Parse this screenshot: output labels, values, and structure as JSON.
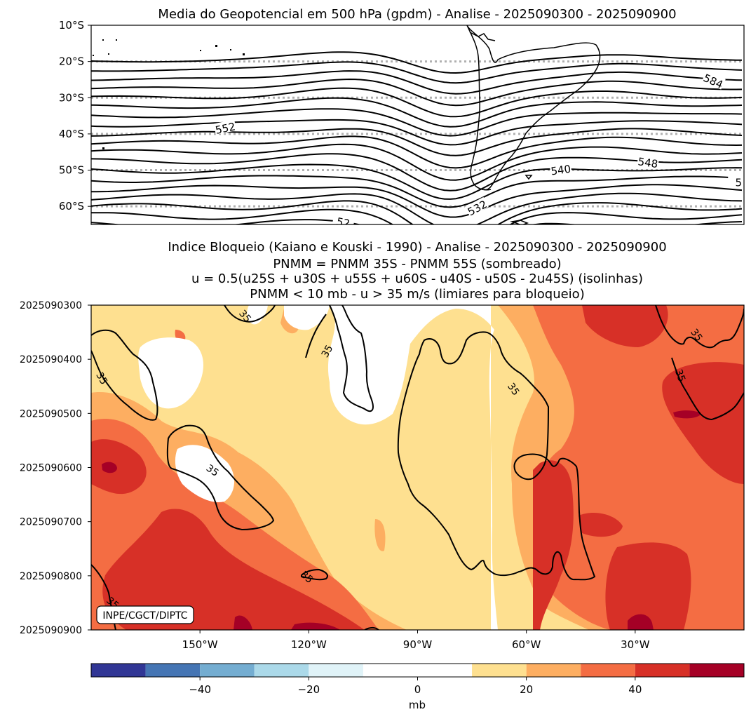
{
  "chart_data": [
    {
      "type": "contour",
      "title": "Media do Geopotencial em 500 hPa (gpdm) - Analise - 2025090300 - 2025090900",
      "y_ticks": [
        {
          "value": -10,
          "label": "10°S"
        },
        {
          "value": -20,
          "label": "20°S"
        },
        {
          "value": -30,
          "label": "30°S"
        },
        {
          "value": -40,
          "label": "40°S"
        },
        {
          "value": -50,
          "label": "50°S"
        },
        {
          "value": -60,
          "label": "60°S"
        }
      ],
      "ylim": [
        -65,
        -10
      ],
      "xlim": [
        -180,
        0
      ],
      "gridlines_lat": [
        -20,
        -30,
        -40,
        -50,
        -60
      ],
      "contour_labels": [
        {
          "text": "552",
          "lon": -143,
          "lat": -38.5,
          "rot": -12
        },
        {
          "text": "584",
          "lon": -8.5,
          "lat": -25.5,
          "rot": 24
        },
        {
          "text": "548",
          "lon": -26.5,
          "lat": -48,
          "rot": 8
        },
        {
          "text": "540",
          "lon": -50.5,
          "lat": -50,
          "rot": -8
        },
        {
          "text": "532",
          "lon": -73.5,
          "lat": -60.5,
          "rot": -28
        },
        {
          "text": "52",
          "lon": -110.5,
          "lat": -64.5,
          "rot": 12
        },
        {
          "text": "5",
          "lon": -1.5,
          "lat": -53.5,
          "rot": 0
        }
      ]
    },
    {
      "type": "filled-contour",
      "title_lines": [
        "Indice Bloqueio (Kaiano e Kouski - 1990) - Analise - 2025090300 - 2025090900",
        "PNMM = PNMM 35S - PNMM 55S (sombreado)",
        "u = 0.5(u25S + u30S + u55S + u60S - u40S - u50S - 2u45S) (isolinhas)",
        "PNMM < 10 mb - u > 35 m/s (limiares para bloqueio)"
      ],
      "y_ticks": [
        "2025090300",
        "2025090400",
        "2025090500",
        "2025090600",
        "2025090700",
        "2025090800",
        "2025090900"
      ],
      "x_ticks": [
        {
          "value": -150,
          "label": "150°W"
        },
        {
          "value": -120,
          "label": "120°W"
        },
        {
          "value": -90,
          "label": "90°W"
        },
        {
          "value": -60,
          "label": "60°W"
        },
        {
          "value": -30,
          "label": "30°W"
        }
      ],
      "xlim": [
        -180,
        0
      ],
      "contour_labels": [
        {
          "text": "35",
          "lon": -137.5,
          "day": 0.2,
          "rot": 50
        },
        {
          "text": "35",
          "lon": -115,
          "day": 0.85,
          "rot": -60
        },
        {
          "text": "35",
          "lon": -177,
          "day": 1.35,
          "rot": 60
        },
        {
          "text": "35",
          "lon": -63.5,
          "day": 1.55,
          "rot": 55
        },
        {
          "text": "35",
          "lon": -13,
          "day": 0.55,
          "rot": 55
        },
        {
          "text": "35",
          "lon": -17.5,
          "day": 1.3,
          "rot": 70
        },
        {
          "text": "35",
          "lon": -146.5,
          "day": 3.05,
          "rot": 35
        },
        {
          "text": "35",
          "lon": -120.5,
          "day": 5.02,
          "rot": 40
        },
        {
          "text": "35",
          "lon": -174,
          "day": 5.5,
          "rot": 40
        }
      ],
      "attribution": "INPE/CGCT/DIPTC"
    },
    {
      "type": "colorbar",
      "xlabel": "mb",
      "range": [
        -60,
        60
      ],
      "levels": [
        -60,
        -50,
        -40,
        -30,
        -20,
        -10,
        10,
        20,
        30,
        40,
        50,
        60
      ],
      "colors": [
        "#313695",
        "#4575b4",
        "#74add1",
        "#abd9e9",
        "#e0f3f8",
        "#ffffff",
        "#fee090",
        "#fdae61",
        "#f46d43",
        "#d73027",
        "#a50026"
      ],
      "tick_labels": [
        {
          "value": -40,
          "label": "−40"
        },
        {
          "value": -20,
          "label": "−20"
        },
        {
          "value": 0,
          "label": "0"
        },
        {
          "value": 20,
          "label": "20"
        },
        {
          "value": 40,
          "label": "40"
        }
      ]
    }
  ]
}
